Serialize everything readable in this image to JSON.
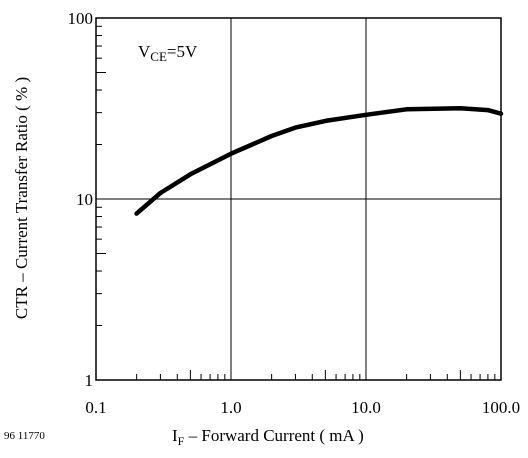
{
  "figure_id": "96 11770",
  "chart_data": {
    "type": "line",
    "title": "",
    "xscale": "log",
    "yscale": "log",
    "xlim": [
      0.1,
      100
    ],
    "ylim": [
      1,
      100
    ],
    "xlabel": {
      "main": "I",
      "sub": "F",
      "rest": " – Forward Current ( mA )"
    },
    "ylabel": "CTR – Current Transfer Ratio ( % )",
    "annotation": {
      "main": "V",
      "sub": "CE",
      "rest": "=5V"
    },
    "x_ticks": [
      "0.1",
      "1.0",
      "10.0",
      "100.0"
    ],
    "y_ticks": [
      "1",
      "10",
      "100"
    ],
    "grid": "major",
    "series": [
      {
        "x": [
          0.2,
          0.3,
          0.5,
          1.0,
          2.0,
          3.0,
          5.0,
          10.0,
          20.0,
          50.0,
          80.0,
          100.0
        ],
        "y": [
          8.3,
          10.8,
          13.7,
          17.8,
          22.3,
          24.8,
          27.0,
          29.2,
          31.3,
          31.7,
          31.0,
          29.6
        ]
      }
    ]
  }
}
